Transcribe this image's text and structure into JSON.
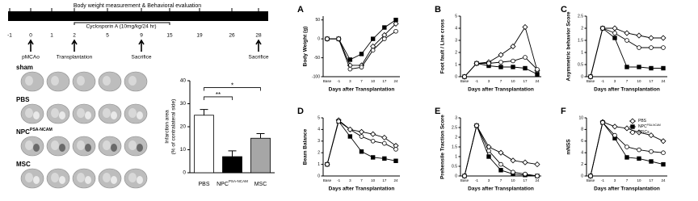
{
  "timeline": {
    "title": "Body weight measurement & Behavioral evaluation",
    "drug": "Cyclosporin A (10mg/kg/24 hr)",
    "days": [
      "-1",
      "0",
      "1",
      "2",
      "5",
      "9",
      "15",
      "19",
      "26",
      "28"
    ],
    "events": [
      "pMCAo",
      "Transplantation",
      "Sacrifice",
      "Sacrifice"
    ]
  },
  "brain_rows": [
    {
      "label": "sham"
    },
    {
      "label": "PBS"
    },
    {
      "label": "NPC",
      "superscript": "PSA-NCAM"
    },
    {
      "label": "MSC"
    }
  ],
  "chart_data": [
    {
      "type": "bar",
      "ylabel": [
        "Infarction area",
        "(% of contralateral side)"
      ],
      "categories": [
        "PBS",
        "NPC",
        "MSC"
      ],
      "category_superscripts": [
        null,
        "PSA-NCAM",
        null
      ],
      "values": [
        25,
        7,
        15
      ],
      "errors": [
        2.5,
        2.5,
        2
      ],
      "colors": [
        "#ffffff",
        "#000000",
        "#a6a6a6"
      ],
      "ylim": [
        0,
        40
      ],
      "yticks": [
        0,
        10,
        20,
        30,
        40
      ],
      "annotations": [
        "**",
        "*"
      ]
    },
    {
      "type": "line",
      "title": "A",
      "ylabel": "Body Weight (g)",
      "xlabel": "Days after Transplantation",
      "categories": [
        "Base",
        "-1",
        "3",
        "7",
        "10",
        "17",
        "24"
      ],
      "ylim": [
        -100,
        60
      ],
      "yticks": [
        -100,
        -50,
        0,
        50
      ],
      "series": [
        {
          "name": "PBS",
          "color": "#000000",
          "marker": "diamond",
          "fill": "#ffffff",
          "values": [
            0,
            0,
            -70,
            -70,
            -20,
            10,
            40
          ]
        },
        {
          "name": "NPC",
          "name_superscript": "PSA-NCAM",
          "color": "#000000",
          "marker": "square",
          "fill": "#000000",
          "values": [
            0,
            0,
            -55,
            -40,
            0,
            30,
            50
          ]
        },
        {
          "name": "MSCs",
          "color": "#000000",
          "marker": "circle",
          "fill": "#ffffff",
          "values": [
            0,
            0,
            -80,
            -75,
            -30,
            0,
            20
          ]
        }
      ]
    },
    {
      "type": "line",
      "title": "B",
      "ylabel": "Foot fault / Line cross",
      "xlabel": "Days after Transplantation",
      "categories": [
        "Base",
        "-1",
        "3",
        "7",
        "10",
        "17",
        "24"
      ],
      "ylim": [
        0,
        5
      ],
      "yticks": [
        0,
        1,
        2,
        3,
        4,
        5
      ],
      "series": [
        {
          "name": "PBS",
          "color": "#000000",
          "marker": "diamond",
          "fill": "#ffffff",
          "values": [
            0,
            1.1,
            1.2,
            1.8,
            2.5,
            4.1,
            0.5
          ]
        },
        {
          "name": "NPC",
          "name_superscript": "PSA-NCAM",
          "color": "#000000",
          "marker": "square",
          "fill": "#000000",
          "values": [
            0,
            1.1,
            0.9,
            0.8,
            0.8,
            0.7,
            0.2
          ]
        },
        {
          "name": "MSCs",
          "color": "#000000",
          "marker": "circle",
          "fill": "#ffffff",
          "values": [
            0,
            1.1,
            1.1,
            1.2,
            1.3,
            1.6,
            0.6
          ]
        }
      ]
    },
    {
      "type": "line",
      "title": "C",
      "ylabel": "Asymmetric behavior Score",
      "xlabel": "Days after Transplantation",
      "categories": [
        "Base",
        "-1",
        "3",
        "7",
        "10",
        "17",
        "24"
      ],
      "ylim": [
        0,
        2.5
      ],
      "yticks": [
        0,
        0.5,
        1,
        1.5,
        2,
        2.5
      ],
      "series": [
        {
          "name": "PBS",
          "color": "#000000",
          "marker": "diamond",
          "fill": "#ffffff",
          "values": [
            0,
            2,
            2,
            1.8,
            1.7,
            1.6,
            1.6
          ]
        },
        {
          "name": "NPC",
          "name_superscript": "PSA-NCAM",
          "color": "#000000",
          "marker": "square",
          "fill": "#000000",
          "values": [
            0,
            2,
            1.6,
            0.4,
            0.4,
            0.35,
            0.35
          ]
        },
        {
          "name": "MSCs",
          "color": "#000000",
          "marker": "circle",
          "fill": "#ffffff",
          "values": [
            0,
            2,
            1.8,
            1.5,
            1.2,
            1.2,
            1.2
          ]
        }
      ]
    },
    {
      "type": "line",
      "title": "D",
      "ylabel": "Beam Balance",
      "xlabel": "Days after Transplantation",
      "categories": [
        "Base",
        "-1",
        "3",
        "7",
        "10",
        "17",
        "24"
      ],
      "ylim": [
        0,
        5
      ],
      "yticks": [
        0,
        1,
        2,
        3,
        4,
        5
      ],
      "series": [
        {
          "name": "PBS",
          "color": "#000000",
          "marker": "diamond",
          "fill": "#ffffff",
          "values": [
            1,
            4.8,
            4,
            3.8,
            3.6,
            3.3,
            2.6
          ]
        },
        {
          "name": "NPC",
          "name_superscript": "PSA-NCAM",
          "color": "#000000",
          "marker": "square",
          "fill": "#000000",
          "values": [
            1,
            4.7,
            3.4,
            2.1,
            1.6,
            1.5,
            1.3
          ]
        },
        {
          "name": "MSCs",
          "color": "#000000",
          "marker": "circle",
          "fill": "#ffffff",
          "values": [
            1,
            4.7,
            4,
            3.4,
            3,
            2.8,
            2.3
          ]
        }
      ]
    },
    {
      "type": "line",
      "title": "E",
      "ylabel": "Prehensile Traction Score",
      "xlabel": "Days after Transplantation",
      "categories": [
        "Base",
        "-1",
        "3",
        "7",
        "10",
        "17",
        "24"
      ],
      "ylim": [
        0,
        3
      ],
      "yticks": [
        0,
        0.5,
        1,
        1.5,
        2,
        2.5,
        3
      ],
      "series": [
        {
          "name": "PBS",
          "color": "#000000",
          "marker": "diamond",
          "fill": "#ffffff",
          "values": [
            0,
            2.6,
            1.5,
            1.2,
            0.8,
            0.7,
            0.6
          ]
        },
        {
          "name": "NPC",
          "name_superscript": "PSA-NCAM",
          "color": "#000000",
          "marker": "square",
          "fill": "#000000",
          "values": [
            0,
            2.6,
            1,
            0.3,
            0.1,
            0.05,
            0
          ]
        },
        {
          "name": "MSCs",
          "color": "#000000",
          "marker": "circle",
          "fill": "#ffffff",
          "values": [
            0,
            2.6,
            1.3,
            0.6,
            0.2,
            0.1,
            0
          ]
        }
      ]
    },
    {
      "type": "line",
      "title": "F",
      "ylabel": "mNSS",
      "xlabel": "Days after Transplantation",
      "legend": "upper right",
      "categories": [
        "Base",
        "-1",
        "3",
        "7",
        "10",
        "17",
        "24"
      ],
      "ylim": [
        0,
        10
      ],
      "yticks": [
        0,
        2,
        4,
        6,
        8,
        10
      ],
      "series": [
        {
          "name": "PBS",
          "color": "#000000",
          "marker": "diamond",
          "fill": "#ffffff",
          "values": [
            0,
            9.3,
            8.5,
            8.2,
            7.5,
            7,
            6
          ]
        },
        {
          "name": "NPC",
          "name_superscript": "PSA-NCAM",
          "color": "#000000",
          "marker": "square",
          "fill": "#000000",
          "values": [
            0,
            9.2,
            6.5,
            3.2,
            3,
            2.5,
            2
          ]
        },
        {
          "name": "MSCs",
          "color": "#000000",
          "marker": "circle",
          "fill": "#ffffff",
          "values": [
            0,
            9.2,
            7,
            5,
            4.5,
            4.2,
            4
          ]
        }
      ]
    }
  ]
}
